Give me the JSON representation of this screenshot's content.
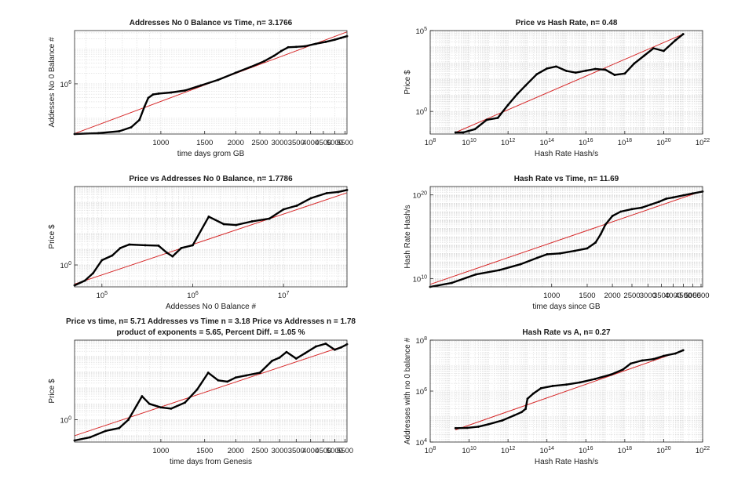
{
  "colors": {
    "data": "#000000",
    "fit": "#d62728",
    "grid": "#d9d9d9",
    "axis": "#262626"
  },
  "chart_data": [
    {
      "id": "p1",
      "type": "line",
      "title": "Addresses No 0 Balance vs Time, n= 3.1766",
      "xlabel": "time days grom GB",
      "ylabel": "Addesses No 0 Balance #",
      "xscale": "log",
      "yscale": "log",
      "xlim": [
        450,
        5600
      ],
      "ylim": [
        35000,
        35000000
      ],
      "xticks": [
        {
          "v": 1000,
          "label": "1000"
        },
        {
          "v": 1500,
          "label": "1500"
        },
        {
          "v": 2000,
          "label": "2000"
        },
        {
          "v": 2500,
          "label": "2500"
        },
        {
          "v": 3000,
          "label": "3000"
        },
        {
          "v": 3500,
          "label": "3500"
        },
        {
          "v": 4000,
          "label": "4000"
        },
        {
          "v": 4500,
          "label": "4500"
        },
        {
          "v": 5000,
          "label": "5000"
        },
        {
          "v": 5500,
          "label": "5500"
        }
      ],
      "yticks": [
        {
          "v": 1000000,
          "base": "10",
          "exp": "6"
        }
      ],
      "fit_line": [
        [
          450,
          36000
        ],
        [
          5600,
          32000000
        ]
      ],
      "series": [
        {
          "name": "data",
          "x": [
            450,
            560,
            680,
            760,
            820,
            860,
            890,
            930,
            980,
            1100,
            1250,
            1450,
            1700,
            2000,
            2300,
            2600,
            2850,
            3050,
            3250,
            3500,
            3800,
            4200,
            4600,
            5000,
            5300,
            5600
          ],
          "y": [
            35000,
            37000,
            42000,
            55000,
            90000,
            220000,
            390000,
            490000,
            520000,
            560000,
            640000,
            900000,
            1300000,
            2100000,
            3100000,
            4500000,
            6500000,
            9000000,
            11500000,
            11800000,
            12300000,
            14500000,
            16500000,
            19000000,
            21500000,
            24000000
          ]
        }
      ]
    },
    {
      "id": "p2",
      "type": "scatter",
      "title": "Price vs Hash Rate, n= 0.48",
      "xlabel": "Hash Rate Hash/s",
      "ylabel": "Price $",
      "xscale": "log",
      "yscale": "log",
      "xlim": [
        100000000.0,
        1e+22
      ],
      "ylim": [
        0.04,
        100000
      ],
      "xticks": [
        {
          "v": 100000000.0,
          "base": "10",
          "exp": "8"
        },
        {
          "v": 10000000000.0,
          "base": "10",
          "exp": "10"
        },
        {
          "v": 1000000000000.0,
          "base": "10",
          "exp": "12"
        },
        {
          "v": 100000000000000.0,
          "base": "10",
          "exp": "14"
        },
        {
          "v": 1e+16,
          "base": "10",
          "exp": "16"
        },
        {
          "v": 1e+18,
          "base": "10",
          "exp": "18"
        },
        {
          "v": 1e+20,
          "base": "10",
          "exp": "20"
        },
        {
          "v": 1e+22,
          "base": "10",
          "exp": "22"
        }
      ],
      "yticks": [
        {
          "v": 1,
          "base": "10",
          "exp": "0"
        },
        {
          "v": 100000,
          "base": "10",
          "exp": "5"
        }
      ],
      "fit_line": [
        [
          2000000000.0,
          0.05
        ],
        [
          1e+21,
          60000
        ]
      ],
      "series": [
        {
          "name": "data",
          "x": [
            2000000000.0,
            5000000000.0,
            20000000000.0,
            80000000000.0,
            300000000000.0,
            1000000000000.0,
            3000000000000.0,
            8000000000000.0,
            30000000000000.0,
            100000000000000.0,
            300000000000000.0,
            1000000000000000.0,
            3000000000000000.0,
            1e+16,
            3e+16,
            1e+17,
            3e+17,
            1e+18,
            3e+18,
            1e+19,
            3e+19,
            1e+20,
            4e+20,
            1e+21
          ],
          "y": [
            0.05,
            0.05,
            0.08,
            0.3,
            0.4,
            2.5,
            12,
            40,
            200,
            450,
            600,
            320,
            250,
            330,
            420,
            380,
            180,
            220,
            900,
            2800,
            8000,
            5500,
            25000,
            60000
          ]
        }
      ]
    },
    {
      "id": "p3",
      "type": "line",
      "title": "Price vs Addresses No 0 Balance, n= 1.7786",
      "xlabel": "Addesses No 0 Balance #",
      "ylabel": "Price $",
      "xscale": "log",
      "yscale": "log",
      "xlim": [
        50000,
        50000000
      ],
      "ylim": [
        0.04,
        100000
      ],
      "xticks": [
        {
          "v": 100000,
          "base": "10",
          "exp": "5"
        },
        {
          "v": 1000000,
          "base": "10",
          "exp": "6"
        },
        {
          "v": 10000000,
          "base": "10",
          "exp": "7"
        }
      ],
      "yticks": [
        {
          "v": 1,
          "base": "10",
          "exp": "0"
        }
      ],
      "fit_line": [
        [
          50000,
          0.06
        ],
        [
          50000000,
          40000
        ]
      ],
      "series": [
        {
          "name": "data",
          "x": [
            50000,
            65000,
            80000,
            100000,
            130000,
            160000,
            200000,
            300000,
            420000,
            520000,
            600000,
            750000,
            1000000,
            1500000,
            2200000,
            3000000,
            4500000,
            7000000,
            10000000,
            14000000,
            20000000,
            30000000,
            40000000,
            50000000
          ],
          "y": [
            0.05,
            0.1,
            0.3,
            2,
            4,
            12,
            20,
            18,
            17,
            6,
            3.5,
            12,
            18,
            1200,
            400,
            350,
            600,
            900,
            3500,
            6000,
            18000,
            38000,
            45000,
            60000
          ]
        }
      ]
    },
    {
      "id": "p4",
      "type": "line",
      "title": "Hash Rate vs Time, n= 11.69",
      "xlabel": "time days since GB",
      "ylabel": "Hash Rate Hash/s",
      "xscale": "log",
      "yscale": "log",
      "xlim": [
        250,
        5600
      ],
      "ylim": [
        1000000000.0,
        1e+21
      ],
      "xticks": [
        {
          "v": 1000,
          "label": "1000"
        },
        {
          "v": 1500,
          "label": "1500"
        },
        {
          "v": 2000,
          "label": "2000"
        },
        {
          "v": 2500,
          "label": "2500"
        },
        {
          "v": 3000,
          "label": "3000"
        },
        {
          "v": 3500,
          "label": "3500"
        },
        {
          "v": 4000,
          "label": "4000"
        },
        {
          "v": 4500,
          "label": "4500"
        },
        {
          "v": 5000,
          "label": "5000"
        },
        {
          "v": 5500,
          "label": "5500"
        }
      ],
      "yticks": [
        {
          "v": 10000000000.0,
          "base": "10",
          "exp": "10"
        },
        {
          "v": 1e+20,
          "base": "10",
          "exp": "20"
        }
      ],
      "fit_line": [
        [
          250,
          2000000000.0
        ],
        [
          5600,
          3e+20
        ]
      ],
      "series": [
        {
          "name": "data",
          "x": [
            250,
            320,
            420,
            550,
            700,
            850,
            950,
            1100,
            1300,
            1500,
            1650,
            1750,
            1850,
            2000,
            2200,
            2500,
            2800,
            3100,
            3400,
            3700,
            4000,
            4500,
            5000,
            5600
          ],
          "y": [
            1000000000.0,
            3000000000.0,
            30000000000.0,
            100000000000.0,
            500000000000.0,
            3000000000000.0,
            8000000000000.0,
            10000000000000.0,
            20000000000000.0,
            40000000000000.0,
            200000000000000.0,
            2000000000000000.0,
            3e+16,
            3e+17,
            1e+18,
            2e+18,
            3e+18,
            7e+18,
            1.5e+19,
            3.5e+19,
            5e+19,
            9e+19,
            1.5e+20,
            2.5e+20
          ]
        }
      ]
    },
    {
      "id": "p5",
      "type": "line",
      "title": "Price vs time, n= 5.71 Addresses vs Time n = 3.18 Price vs Addresses n = 1.78",
      "subtitle": "product of exponents = 5.65, Percent Diff. = 1.05 %",
      "xlabel": "time days from Genesis",
      "ylabel": "Price $",
      "xscale": "log",
      "yscale": "log",
      "xlim": [
        450,
        5600
      ],
      "ylim": [
        0.04,
        100000
      ],
      "xticks": [
        {
          "v": 1000,
          "label": "1000"
        },
        {
          "v": 1500,
          "label": "1500"
        },
        {
          "v": 2000,
          "label": "2000"
        },
        {
          "v": 2500,
          "label": "2500"
        },
        {
          "v": 3000,
          "label": "3000"
        },
        {
          "v": 3500,
          "label": "3500"
        },
        {
          "v": 4000,
          "label": "4000"
        },
        {
          "v": 4500,
          "label": "4500"
        },
        {
          "v": 5000,
          "label": "5000"
        },
        {
          "v": 5500,
          "label": "5500"
        }
      ],
      "yticks": [
        {
          "v": 1,
          "base": "10",
          "exp": "0"
        }
      ],
      "fit_line": [
        [
          450,
          0.1
        ],
        [
          5600,
          50000
        ]
      ],
      "series": [
        {
          "name": "data",
          "x": [
            450,
            520,
            600,
            680,
            740,
            800,
            840,
            900,
            1000,
            1100,
            1250,
            1400,
            1550,
            1700,
            1850,
            2000,
            2200,
            2500,
            2800,
            3000,
            3200,
            3500,
            3800,
            4200,
            4600,
            5000,
            5300,
            5600
          ],
          "y": [
            0.05,
            0.08,
            0.2,
            0.3,
            1,
            8,
            30,
            10,
            6,
            5,
            12,
            80,
            900,
            300,
            250,
            450,
            600,
            900,
            5000,
            8000,
            18000,
            7000,
            15000,
            40000,
            60000,
            25000,
            35000,
            55000
          ]
        }
      ]
    },
    {
      "id": "p6",
      "type": "scatter",
      "title": "Hash Rate vs A, n= 0.27",
      "xlabel": "Hash Rate Hash/s",
      "ylabel": "Addresses with no 0 balance #",
      "xscale": "log",
      "yscale": "log",
      "xlim": [
        100000000.0,
        1e+22
      ],
      "ylim": [
        10000,
        100000000
      ],
      "xticks": [
        {
          "v": 100000000.0,
          "base": "10",
          "exp": "8"
        },
        {
          "v": 10000000000.0,
          "base": "10",
          "exp": "10"
        },
        {
          "v": 1000000000000.0,
          "base": "10",
          "exp": "12"
        },
        {
          "v": 100000000000000.0,
          "base": "10",
          "exp": "14"
        },
        {
          "v": 1e+16,
          "base": "10",
          "exp": "16"
        },
        {
          "v": 1e+18,
          "base": "10",
          "exp": "18"
        },
        {
          "v": 1e+20,
          "base": "10",
          "exp": "20"
        },
        {
          "v": 1e+22,
          "base": "10",
          "exp": "22"
        }
      ],
      "yticks": [
        {
          "v": 10000,
          "base": "10",
          "exp": "4"
        },
        {
          "v": 1000000,
          "base": "10",
          "exp": "6"
        },
        {
          "v": 100000000,
          "base": "10",
          "exp": "8"
        }
      ],
      "fit_line": [
        [
          2000000000.0,
          30000
        ],
        [
          1e+21,
          40000000
        ]
      ],
      "series": [
        {
          "name": "data",
          "x": [
            2000000000.0,
            8000000000.0,
            30000000000.0,
            100000000000.0,
            500000000000.0,
            2000000000000.0,
            5000000000000.0,
            8000000000000.0,
            10000000000000.0,
            20000000000000.0,
            50000000000000.0,
            200000000000000.0,
            1000000000000000.0,
            5000000000000000.0,
            3e+16,
            2e+17,
            8e+17,
            2e+18,
            8e+18,
            3e+19,
            1e+20,
            4e+20,
            1e+21
          ],
          "y": [
            35000,
            36000,
            40000,
            50000,
            70000,
            110000,
            150000,
            200000,
            500000,
            800000,
            1300000,
            1600000,
            1800000,
            2200000,
            3000000,
            4500000,
            7000000,
            12000000,
            16000000,
            18000000,
            24000000,
            30000000,
            40000000
          ]
        }
      ]
    }
  ]
}
